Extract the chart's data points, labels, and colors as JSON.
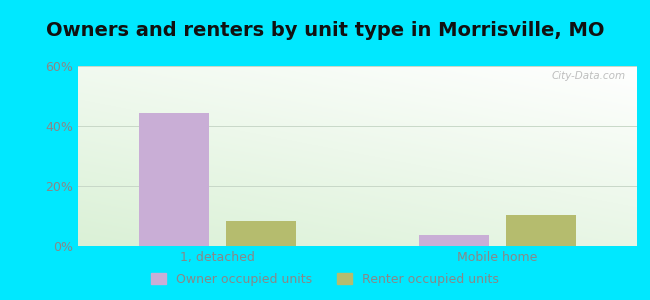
{
  "title": "Owners and renters by unit type in Morrisville, MO",
  "categories": [
    "1, detached",
    "Mobile home"
  ],
  "series": [
    {
      "label": "Owner occupied units",
      "color": "#c9aed6",
      "values": [
        44.5,
        3.8
      ]
    },
    {
      "label": "Renter occupied units",
      "color": "#b5bc6e",
      "values": [
        8.5,
        10.5
      ]
    }
  ],
  "ylim": [
    0,
    60
  ],
  "yticks": [
    0,
    20,
    40,
    60
  ],
  "ytick_labels": [
    "0%",
    "20%",
    "40%",
    "60%"
  ],
  "bar_width": 0.25,
  "background_outer": "#00e8ff",
  "background_inner_topleft": "#daeee0",
  "background_inner_topright": "#e8f5f8",
  "background_inner_bottomleft": "#c8e8c0",
  "background_inner_bottomright": "#ffffff",
  "grid_color": "#c8d8c8",
  "title_fontsize": 14,
  "legend_fontsize": 9,
  "tick_fontsize": 9,
  "watermark": "City-Data.com",
  "tick_color": "#888888",
  "title_color": "#111111"
}
